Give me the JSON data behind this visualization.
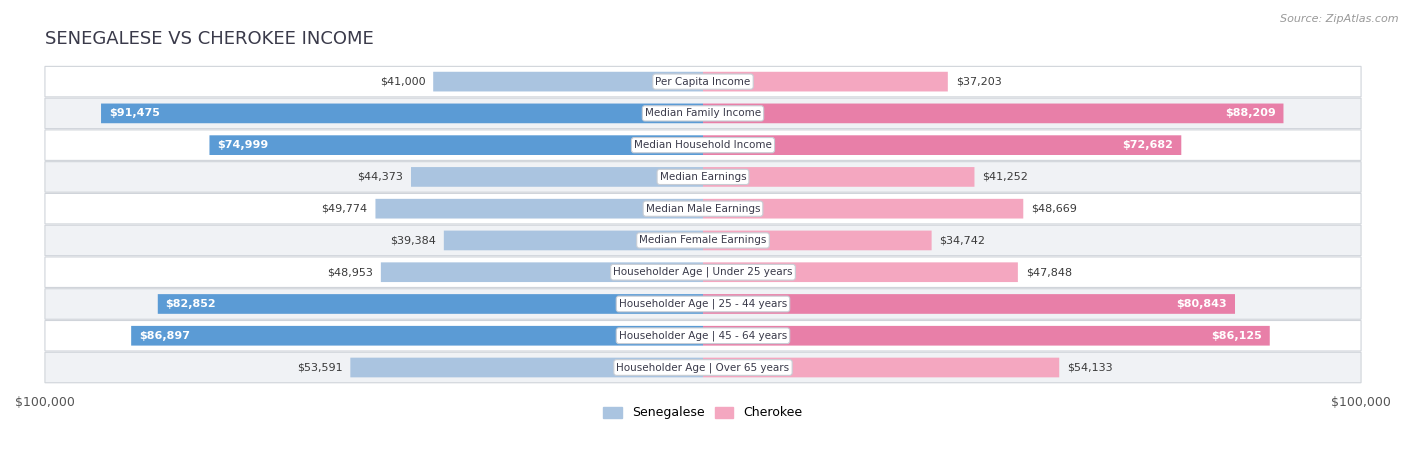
{
  "title": "SENEGALESE VS CHEROKEE INCOME",
  "source": "Source: ZipAtlas.com",
  "max_value": 100000,
  "categories": [
    "Per Capita Income",
    "Median Family Income",
    "Median Household Income",
    "Median Earnings",
    "Median Male Earnings",
    "Median Female Earnings",
    "Householder Age | Under 25 years",
    "Householder Age | 25 - 44 years",
    "Householder Age | 45 - 64 years",
    "Householder Age | Over 65 years"
  ],
  "senegalese_values": [
    41000,
    91475,
    74999,
    44373,
    49774,
    39384,
    48953,
    82852,
    86897,
    53591
  ],
  "cherokee_values": [
    37203,
    88209,
    72682,
    41252,
    48669,
    34742,
    47848,
    80843,
    86125,
    54133
  ],
  "senegalese_labels": [
    "$41,000",
    "$91,475",
    "$74,999",
    "$44,373",
    "$49,774",
    "$39,384",
    "$48,953",
    "$82,852",
    "$86,897",
    "$53,591"
  ],
  "cherokee_labels": [
    "$37,203",
    "$88,209",
    "$72,682",
    "$41,252",
    "$48,669",
    "$34,742",
    "$47,848",
    "$80,843",
    "$86,125",
    "$54,133"
  ],
  "senegalese_color_light": "#aac4e0",
  "senegalese_color_dark": "#5b9bd5",
  "cherokee_color_light": "#f4a7c0",
  "cherokee_color_dark": "#e87fa8",
  "label_inside_threshold": 65000,
  "bar_height": 0.62,
  "row_colors": [
    "#ffffff",
    "#f0f2f5"
  ],
  "row_border_color": "#d0d4da",
  "title_color": "#3a3a4a",
  "label_color_outside": "#3a3a3a",
  "label_color_inside": "#ffffff"
}
